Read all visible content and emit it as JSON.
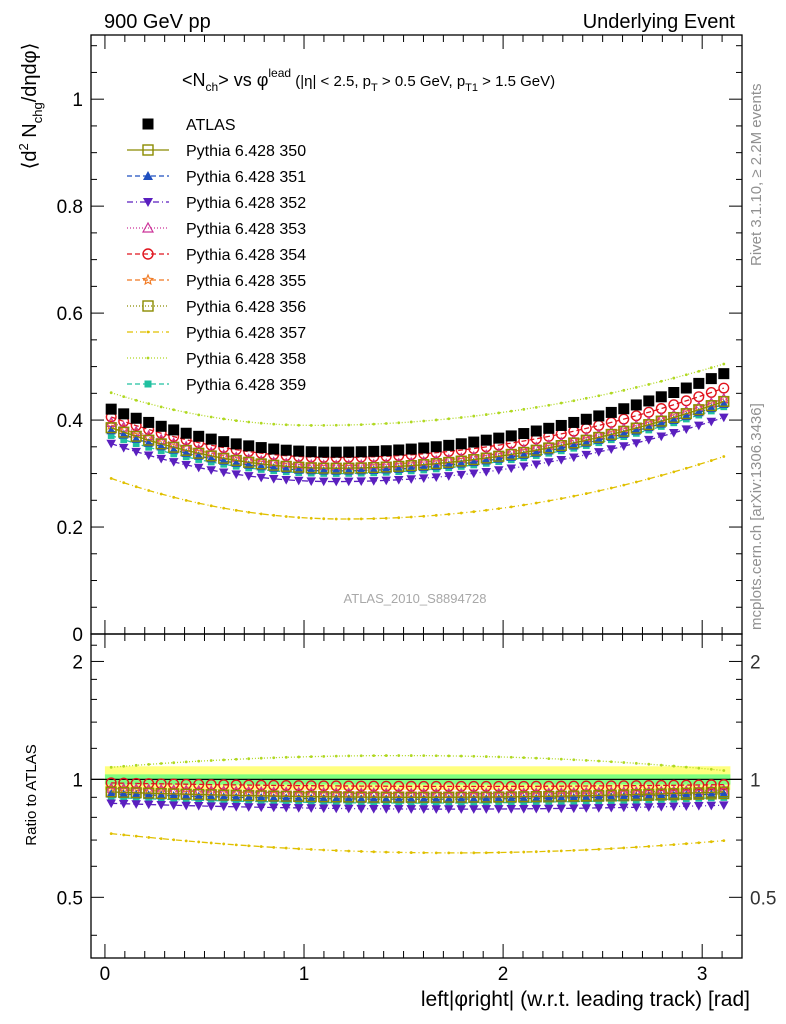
{
  "header": {
    "left": "900 GeV pp",
    "right": "Underlying Event"
  },
  "side_labels": {
    "rivet": "Rivet 3.1.10, ≥ 2.2M events",
    "mcplots": "mcplots.cern.ch [arXiv:1306.3436]"
  },
  "watermark": "ATLAS_2010_S8894728",
  "colors": {
    "data": "#000000",
    "ratio_band_inner": "#7fff7f",
    "ratio_band_outer": "#ffff7f"
  },
  "chart_data": [
    {
      "type": "scatter",
      "panel": "main",
      "title": "<N_ch> vs φ^lead (|η| < 2.5, p_T > 0.5 GeV, p_T1 > 1.5 GeV)",
      "title_parts": {
        "a": "<N",
        "a_sub": "ch",
        "b": "> vs φ",
        "b_sup": "lead",
        "c": " (|η| < 2.5, p",
        "c_sub": "T",
        "d": " > 0.5 GeV, p",
        "d_sub": "T1",
        "e": " > 1.5 GeV)"
      },
      "ylabel": "⟨d² N_chg/dηdφ⟩",
      "ylabel_parts": {
        "a": "⟨d",
        "sup": "2",
        "b": " N",
        "sub": "chg",
        "c": "/dηdφ⟩"
      },
      "xlim": [
        -0.07,
        3.2
      ],
      "ylim": [
        0,
        1.12
      ],
      "yticks": [
        {
          "v": 0,
          "label": "0"
        },
        {
          "v": 0.2,
          "label": "0.2"
        },
        {
          "v": 0.4,
          "label": "0.4"
        },
        {
          "v": 0.6,
          "label": "0.6"
        },
        {
          "v": 0.8,
          "label": "0.8"
        },
        {
          "v": 1.0,
          "label": "1"
        }
      ],
      "legend_position": "upper-left",
      "series": [
        {
          "name": "ATLAS",
          "color": "#000000",
          "marker": "filled-square",
          "line": "none",
          "shape": {
            "y0": 0.425,
            "ymin": 0.34,
            "ymax": 0.487,
            "xmin": 1.15
          }
        },
        {
          "name": "Pythia 6.428 350",
          "color": "#8b8b00",
          "marker": "open-square",
          "line": "solid",
          "shape": {
            "y0": 0.39,
            "ymin": 0.31,
            "ymax": 0.435,
            "xmin": 1.15
          }
        },
        {
          "name": "Pythia 6.428 351",
          "color": "#1f4fbf",
          "marker": "filled-triangle",
          "line": "dashed",
          "shape": {
            "y0": 0.385,
            "ymin": 0.305,
            "ymax": 0.43,
            "xmin": 1.15
          }
        },
        {
          "name": "Pythia 6.428 352",
          "color": "#5a1fbf",
          "marker": "filled-triangle-down",
          "line": "dashdot",
          "shape": {
            "y0": 0.36,
            "ymin": 0.285,
            "ymax": 0.405,
            "xmin": 1.15
          }
        },
        {
          "name": "Pythia 6.428 353",
          "color": "#cc3399",
          "marker": "open-triangle",
          "line": "dotted",
          "shape": {
            "y0": 0.4,
            "ymin": 0.315,
            "ymax": 0.44,
            "xmin": 1.15
          }
        },
        {
          "name": "Pythia 6.428 354",
          "color": "#e0141e",
          "marker": "open-circle",
          "line": "dashed",
          "shape": {
            "y0": 0.41,
            "ymin": 0.33,
            "ymax": 0.46,
            "xmin": 1.15
          }
        },
        {
          "name": "Pythia 6.428 355",
          "color": "#f07820",
          "marker": "open-star",
          "line": "dashed",
          "shape": {
            "y0": 0.395,
            "ymin": 0.315,
            "ymax": 0.44,
            "xmin": 1.15
          }
        },
        {
          "name": "Pythia 6.428 356",
          "color": "#8b8b00",
          "marker": "open-square",
          "line": "dotted",
          "shape": {
            "y0": 0.39,
            "ymin": 0.31,
            "ymax": 0.435,
            "xmin": 1.15
          }
        },
        {
          "name": "Pythia 6.428 357",
          "color": "#e0c000",
          "marker": "small-dot",
          "line": "dashdot",
          "shape": {
            "y0": 0.295,
            "ymin": 0.215,
            "ymax": 0.332,
            "xmin": 1.2
          }
        },
        {
          "name": "Pythia 6.428 358",
          "color": "#b0d820",
          "marker": "small-dot",
          "line": "dotted",
          "shape": {
            "y0": 0.455,
            "ymin": 0.39,
            "ymax": 0.505,
            "xmin": 1.05
          }
        },
        {
          "name": "Pythia 6.428 359",
          "color": "#20c0a0",
          "marker": "filled-square-small",
          "line": "dashed",
          "shape": {
            "y0": 0.375,
            "ymin": 0.3,
            "ymax": 0.425,
            "xmin": 1.15
          }
        }
      ],
      "x_bins": {
        "first": 0.0314,
        "width": 0.0628,
        "count": 50
      }
    },
    {
      "type": "scatter",
      "panel": "ratio",
      "ylabel": "Ratio to ATLAS",
      "xlabel": "left|φright| (w.r.t. leading track) [rad]",
      "xlim": [
        -0.07,
        3.2
      ],
      "ylim": [
        0.35,
        2.35
      ],
      "yticks": [
        {
          "v": 0.5,
          "label": "0.5"
        },
        {
          "v": 1.0,
          "label": "1"
        },
        {
          "v": 2.0,
          "label": "2"
        }
      ],
      "xticks": [
        {
          "v": 0,
          "label": "0"
        },
        {
          "v": 1,
          "label": "1"
        },
        {
          "v": 2,
          "label": "2"
        },
        {
          "v": 3,
          "label": "3"
        }
      ],
      "reference_line": 1.0,
      "band_inner": [
        0.97,
        1.03
      ],
      "band_outer": [
        0.94,
        1.08
      ],
      "series": [
        {
          "name": "Pythia 6.428 350",
          "ratio": [
            0.93,
            0.9,
            0.93
          ]
        },
        {
          "name": "Pythia 6.428 351",
          "ratio": [
            0.92,
            0.89,
            0.92
          ]
        },
        {
          "name": "Pythia 6.428 352",
          "ratio": [
            0.87,
            0.84,
            0.86
          ]
        },
        {
          "name": "Pythia 6.428 353",
          "ratio": [
            0.95,
            0.92,
            0.94
          ]
        },
        {
          "name": "Pythia 6.428 354",
          "ratio": [
            0.98,
            0.96,
            0.97
          ]
        },
        {
          "name": "Pythia 6.428 355",
          "ratio": [
            0.94,
            0.92,
            0.93
          ]
        },
        {
          "name": "Pythia 6.428 356",
          "ratio": [
            0.93,
            0.9,
            0.92
          ]
        },
        {
          "name": "Pythia 6.428 357",
          "ratio": [
            0.73,
            0.65,
            0.7
          ]
        },
        {
          "name": "Pythia 6.428 358",
          "ratio": [
            1.07,
            1.15,
            1.05
          ]
        },
        {
          "name": "Pythia 6.428 359",
          "ratio": [
            0.9,
            0.87,
            0.9
          ]
        }
      ]
    }
  ]
}
